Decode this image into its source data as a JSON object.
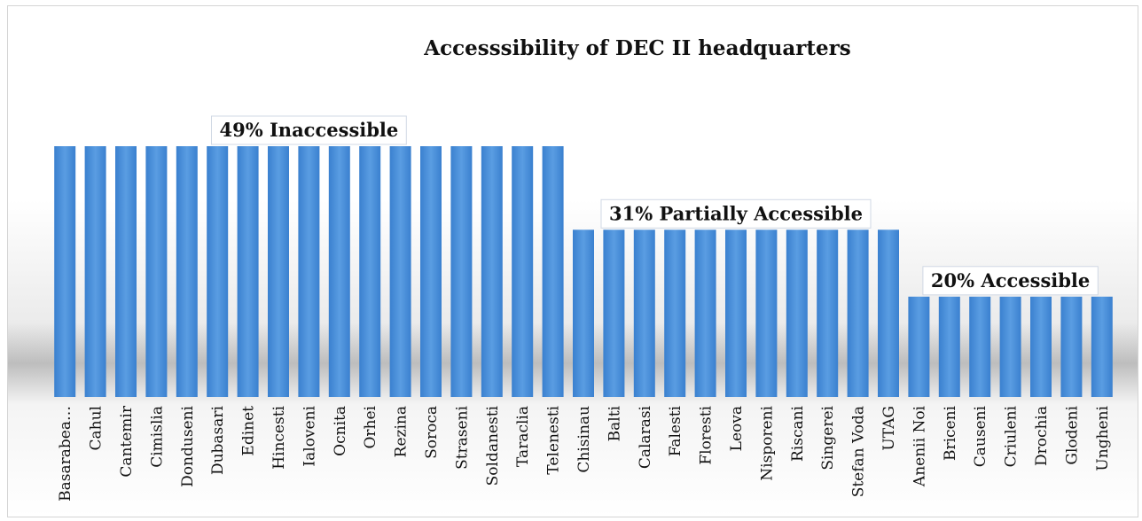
{
  "chart_data": {
    "type": "bar",
    "title": "Accesssibility of DEC II headquarters",
    "xlabel": "",
    "ylabel": "",
    "ylim": [
      0,
      3
    ],
    "grid": false,
    "legend": "none",
    "bar_color": "#4a90d9",
    "categories": [
      "Basarabea…",
      "Cahul",
      "Cantemir",
      "Cimislia",
      "Donduseni",
      "Dubasari",
      "Edinet",
      "Hincesti",
      "Ialoveni",
      "Ocnita",
      "Orhei",
      "Rezina",
      "Soroca",
      "Straseni",
      "Soldanesti",
      "Taraclia",
      "Telenesti",
      "Chisinau",
      "Balti",
      "Calarasi",
      "Falesti",
      "Floresti",
      "Leova",
      "Nisporeni",
      "Riscani",
      "Singerei",
      "Stefan Voda",
      "UTAG",
      "Anenii Noi",
      "Briceni",
      "Causeni",
      "Criuleni",
      "Drochia",
      "Glodeni",
      "Ungheni"
    ],
    "values": [
      3,
      3,
      3,
      3,
      3,
      3,
      3,
      3,
      3,
      3,
      3,
      3,
      3,
      3,
      3,
      3,
      3,
      2,
      2,
      2,
      2,
      2,
      2,
      2,
      2,
      2,
      2,
      2,
      1.2,
      1.2,
      1.2,
      1.2,
      1.2,
      1.2,
      1.2
    ],
    "annotations": [
      {
        "text": "49% Inaccessible",
        "first": 0,
        "last": 16
      },
      {
        "text": "31% Partially Accessible",
        "first": 17,
        "last": 27
      },
      {
        "text": "20% Accessible",
        "first": 28,
        "last": 34
      }
    ]
  }
}
